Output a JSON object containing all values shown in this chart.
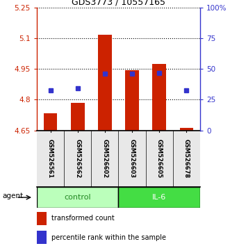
{
  "title": "GDS3773 / 10557165",
  "samples": [
    "GSM526561",
    "GSM526562",
    "GSM526602",
    "GSM526603",
    "GSM526605",
    "GSM526678"
  ],
  "bar_base": 4.65,
  "bar_tops": [
    4.735,
    4.785,
    5.115,
    4.945,
    4.975,
    4.663
  ],
  "percentile_values": [
    4.845,
    4.855,
    4.925,
    4.925,
    4.93,
    4.845
  ],
  "ylim": [
    4.65,
    5.25
  ],
  "yticks_left": [
    4.65,
    4.8,
    4.95,
    5.1,
    5.25
  ],
  "yticks_right_labels": [
    "0",
    "25",
    "50",
    "75",
    "100%"
  ],
  "bar_color": "#cc2200",
  "percentile_color": "#3333cc",
  "control_color": "#bbffbb",
  "il6_color": "#44dd44",
  "group_text_control_color": "#228822",
  "group_text_il6_color": "#006600",
  "axis_left_color": "#cc2200",
  "axis_right_color": "#3333cc",
  "legend_bar_label": "transformed count",
  "legend_percentile_label": "percentile rank within the sample",
  "agent_label": "agent",
  "control_label": "control",
  "il6_label": "IL-6",
  "sample_box_color": "#d0d0d0",
  "bar_width": 0.5
}
